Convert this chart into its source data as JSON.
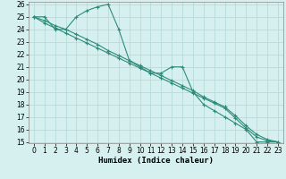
{
  "title": "",
  "xlabel": "Humidex (Indice chaleur)",
  "x_values": [
    0,
    1,
    2,
    3,
    4,
    5,
    6,
    7,
    8,
    9,
    10,
    11,
    12,
    13,
    14,
    15,
    16,
    17,
    18,
    19,
    20,
    21,
    22,
    23
  ],
  "line1": [
    25,
    25,
    24,
    24,
    25,
    25.5,
    25.8,
    26,
    24,
    21.5,
    21,
    20.5,
    20.5,
    21,
    21,
    19,
    18,
    17.5,
    17,
    16.5,
    16,
    15,
    15,
    15
  ],
  "line2": [
    25,
    24.7,
    24.3,
    24.0,
    23.6,
    23.2,
    22.8,
    22.3,
    21.9,
    21.5,
    21.1,
    20.7,
    20.3,
    19.9,
    19.5,
    19.1,
    18.6,
    18.2,
    17.8,
    17.1,
    16.3,
    15.6,
    15.2,
    15.0
  ],
  "line3": [
    25,
    24.5,
    24.1,
    23.7,
    23.3,
    22.9,
    22.5,
    22.1,
    21.7,
    21.3,
    20.9,
    20.5,
    20.1,
    19.7,
    19.3,
    18.9,
    18.5,
    18.1,
    17.7,
    16.9,
    16.1,
    15.4,
    15.1,
    15.0
  ],
  "line_color": "#2e8b7a",
  "bg_color": "#d6f0ef",
  "grid_color": "#b0d8d5",
  "ylim": [
    15,
    26
  ],
  "xlim": [
    -0.5,
    23.5
  ],
  "yticks": [
    15,
    16,
    17,
    18,
    19,
    20,
    21,
    22,
    23,
    24,
    25,
    26
  ],
  "xticks": [
    0,
    1,
    2,
    3,
    4,
    5,
    6,
    7,
    8,
    9,
    10,
    11,
    12,
    13,
    14,
    15,
    16,
    17,
    18,
    19,
    20,
    21,
    22,
    23
  ],
  "tick_fontsize": 5.5,
  "xlabel_fontsize": 6.5
}
